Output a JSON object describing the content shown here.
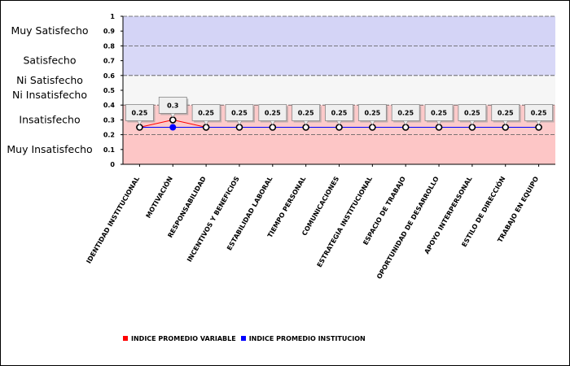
{
  "chart_data": {
    "type": "line",
    "categories": [
      "IDENTIDAD INSTITUCIONAL",
      "MOTIVACIÓN",
      "RESPONSABILIDAD",
      "INCENTIVOS Y BENEFICIOS",
      "ESTABILIDAD LABORAL",
      "TIEMPO PERSONAL",
      "COMUNICACIONES",
      "ESTRATEGIA INSTITUCIONAL",
      "ESPACIO DE TRABAJO",
      "OPORTUNIDAD DE DESARROLLO",
      "APOYO INTERPERSONAL",
      "ESTILO DE DIRECCIÓN",
      "TRABAJO EN EQUIPO"
    ],
    "series": [
      {
        "name": "INDICE PROMEDIO VARIABLE",
        "color": "#ff0000",
        "values": [
          0.25,
          0.3,
          0.25,
          0.25,
          0.25,
          0.25,
          0.25,
          0.25,
          0.25,
          0.25,
          0.25,
          0.25,
          0.25
        ]
      },
      {
        "name": "INDICE PROMEDIO INSTITUCION",
        "color": "#0000ff",
        "values": [
          0.25,
          0.25,
          0.25,
          0.25,
          0.25,
          0.25,
          0.25,
          0.25,
          0.25,
          0.25,
          0.25,
          0.25,
          0.25
        ]
      }
    ],
    "data_labels": [
      "0.25",
      "0.3",
      "0.25",
      "0.25",
      "0.25",
      "0.25",
      "0.25",
      "0.25",
      "0.25",
      "0.25",
      "0.25",
      "0.25",
      "0.25"
    ],
    "yticks": [
      "0",
      "0.1",
      "0.2",
      "0.3",
      "0.4",
      "0.5",
      "0.6",
      "0.7",
      "0.8",
      "0.9",
      "1"
    ],
    "ylim": [
      0,
      1
    ],
    "bands": [
      {
        "label": "Muy Satisfecho",
        "from": 0.8,
        "to": 1.0,
        "color": "#d4d4f6"
      },
      {
        "label": "Satisfecho",
        "from": 0.6,
        "to": 0.8,
        "color": "#d8d8f7"
      },
      {
        "label": "Ni Satisfecho",
        "label2": "Ni Insatisfecho",
        "from": 0.4,
        "to": 0.6,
        "color": "#f6f6f6"
      },
      {
        "label": "Insatisfecho",
        "from": 0.2,
        "to": 0.4,
        "color": "#fccaca"
      },
      {
        "label": "Muy Insatisfecho",
        "from": 0.0,
        "to": 0.2,
        "color": "#fdc6c6"
      }
    ],
    "legend_position": "bottom",
    "grid": true
  }
}
